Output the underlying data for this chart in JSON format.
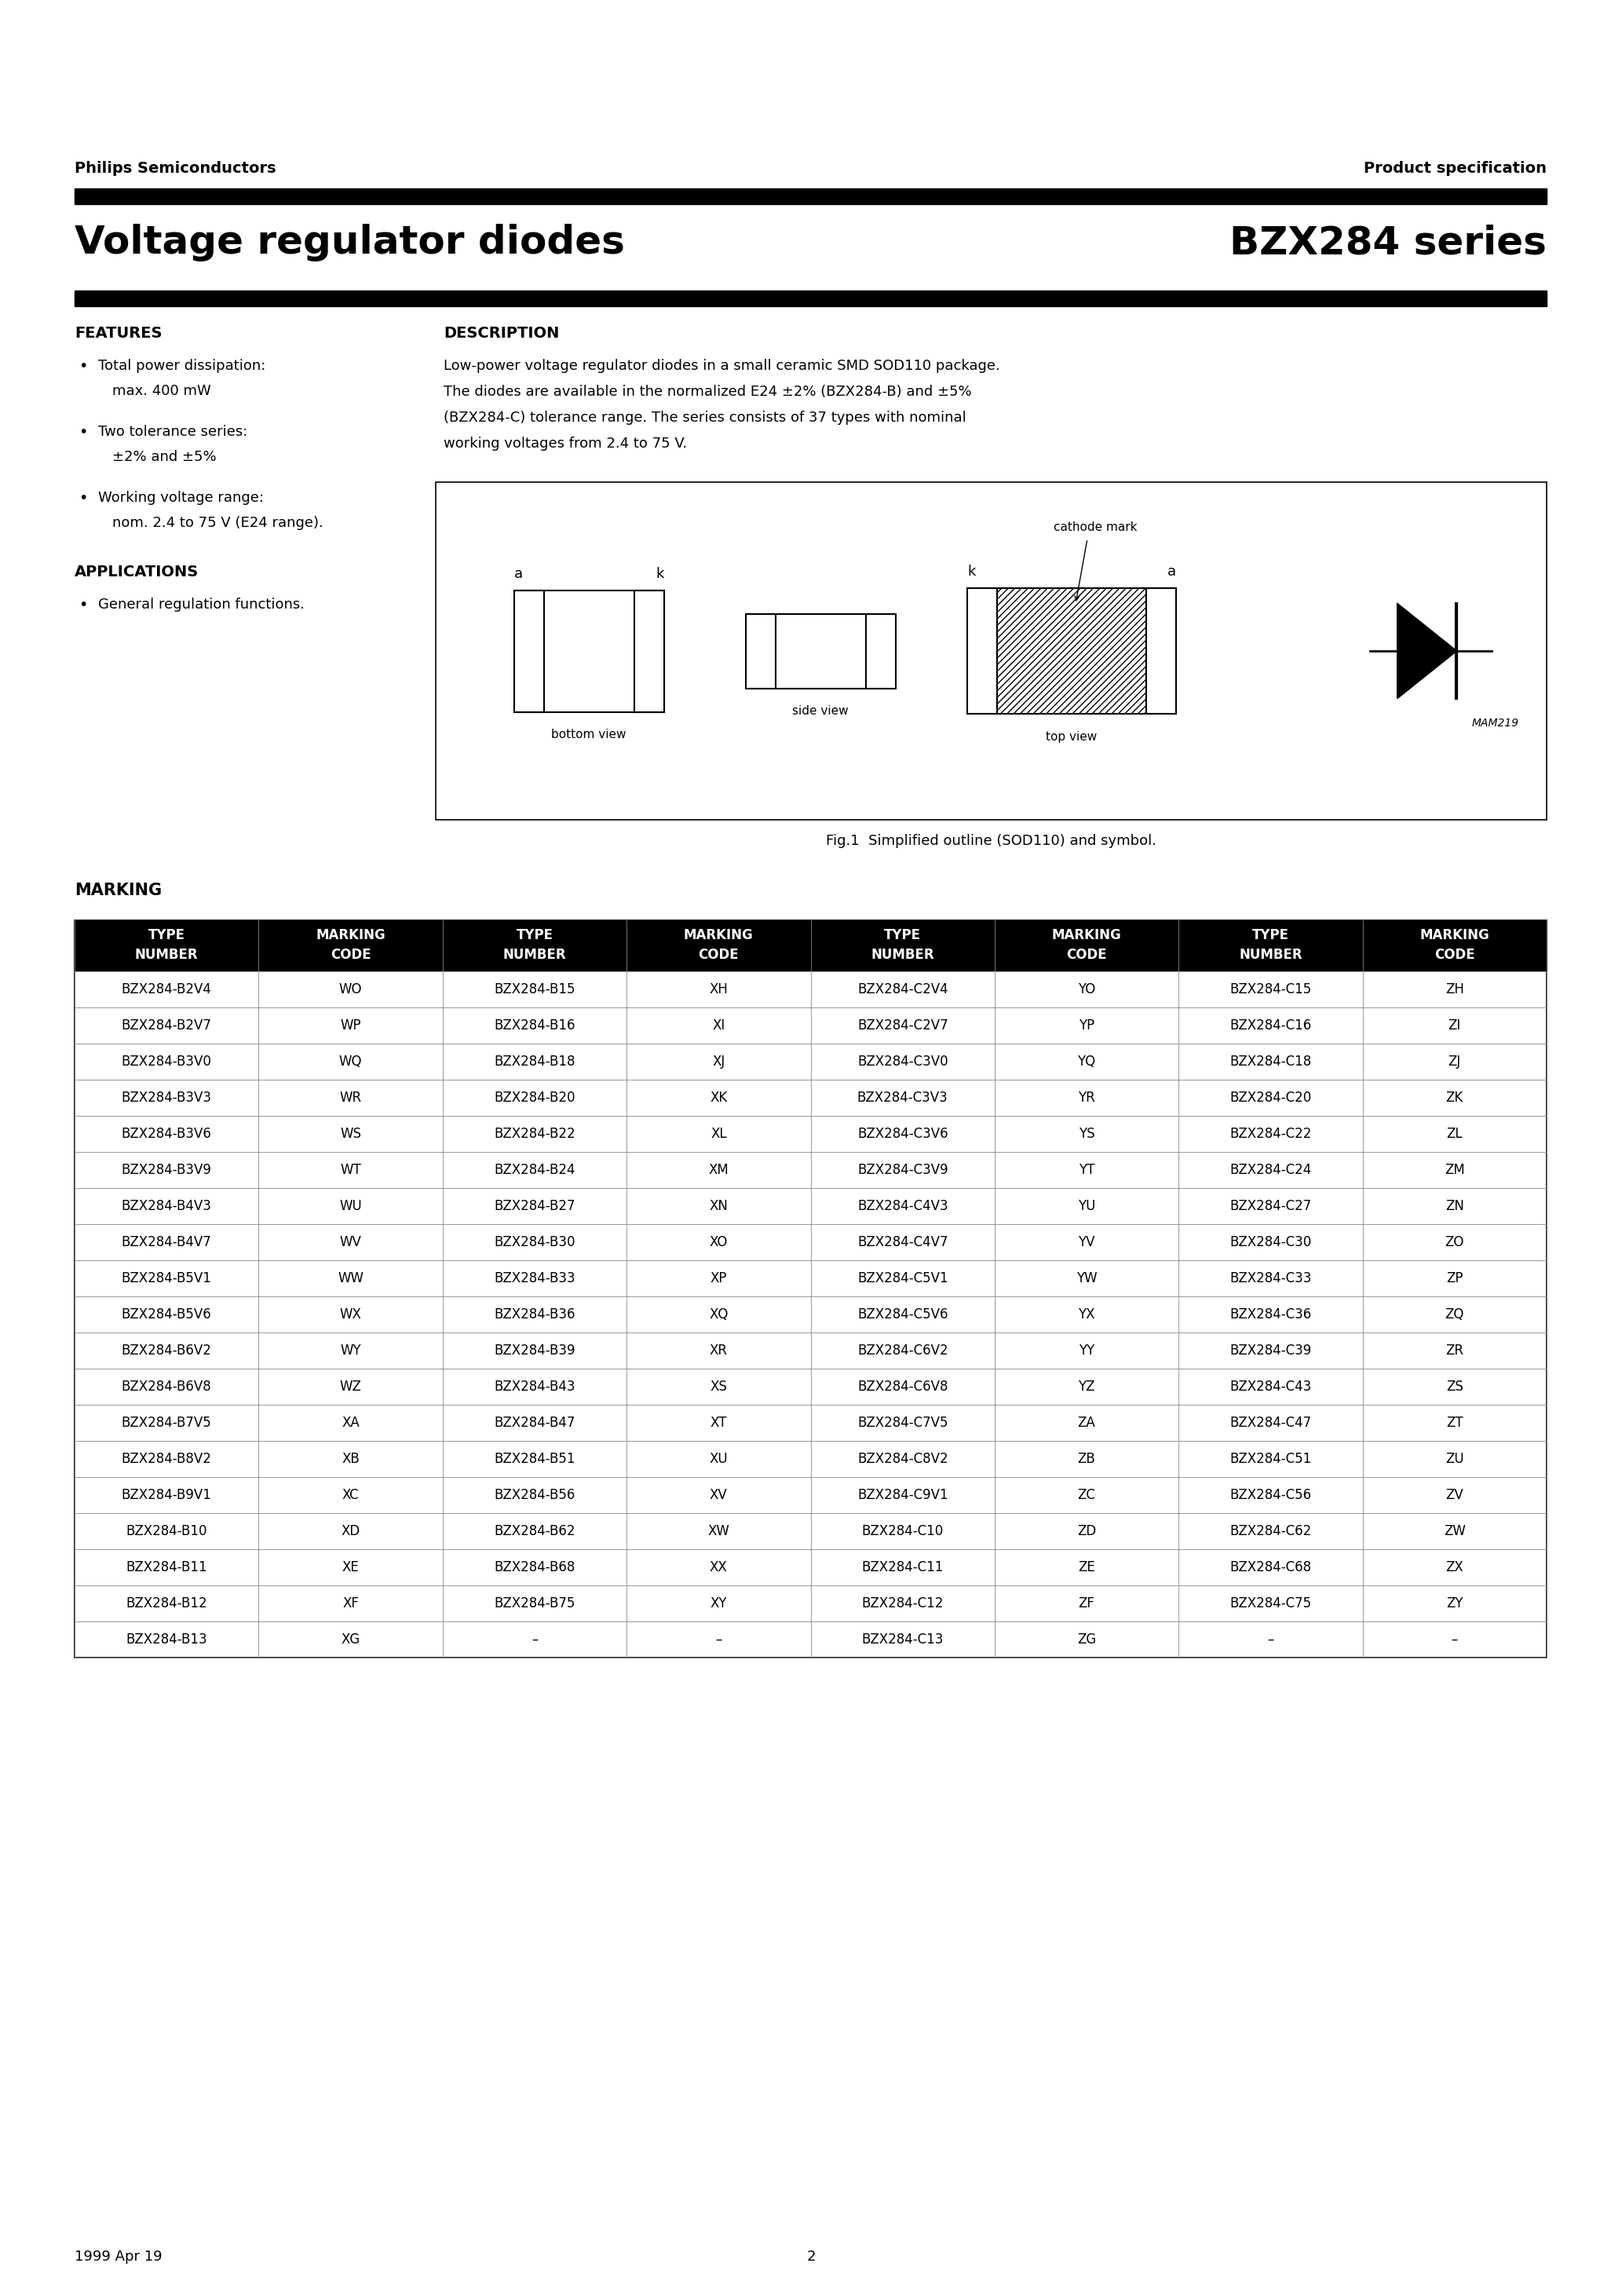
{
  "page_title_left": "Voltage regulator diodes",
  "page_title_right": "BZX284 series",
  "header_left": "Philips Semiconductors",
  "header_right": "Product specification",
  "features_title": "FEATURES",
  "features_lines": [
    [
      "Total power dissipation:",
      "max. 400 mW"
    ],
    [
      "Two tolerance series:",
      "±2% and ±5%"
    ],
    [
      "Working voltage range:",
      "nom. 2.4 to 75 V (E24 range)."
    ]
  ],
  "applications_title": "APPLICATIONS",
  "applications": [
    "General regulation functions."
  ],
  "description_title": "DESCRIPTION",
  "description_lines": [
    "Low-power voltage regulator diodes in a small ceramic SMD SOD110 package.",
    "The diodes are available in the normalized E24 ±2% (BZX284-B) and ±5%",
    "(BZX284-C) tolerance range. The series consists of 37 types with nominal",
    "working voltages from 2.4 to 75 V."
  ],
  "fig_caption": "Fig.1  Simplified outline (SOD110) and symbol.",
  "marking_title": "MARKING",
  "table_col_headers": [
    "TYPE\nNUMBER",
    "MARKING\nCODE",
    "TYPE\nNUMBER",
    "MARKING\nCODE",
    "TYPE\nNUMBER",
    "MARKING\nCODE",
    "TYPE\nNUMBER",
    "MARKING\nCODE"
  ],
  "table_data": [
    [
      "BZX284-B2V4",
      "WO",
      "BZX284-B15",
      "XH",
      "BZX284-C2V4",
      "YO",
      "BZX284-C15",
      "ZH"
    ],
    [
      "BZX284-B2V7",
      "WP",
      "BZX284-B16",
      "XI",
      "BZX284-C2V7",
      "YP",
      "BZX284-C16",
      "ZI"
    ],
    [
      "BZX284-B3V0",
      "WQ",
      "BZX284-B18",
      "XJ",
      "BZX284-C3V0",
      "YQ",
      "BZX284-C18",
      "ZJ"
    ],
    [
      "BZX284-B3V3",
      "WR",
      "BZX284-B20",
      "XK",
      "BZX284-C3V3",
      "YR",
      "BZX284-C20",
      "ZK"
    ],
    [
      "BZX284-B3V6",
      "WS",
      "BZX284-B22",
      "XL",
      "BZX284-C3V6",
      "YS",
      "BZX284-C22",
      "ZL"
    ],
    [
      "BZX284-B3V9",
      "WT",
      "BZX284-B24",
      "XM",
      "BZX284-C3V9",
      "YT",
      "BZX284-C24",
      "ZM"
    ],
    [
      "BZX284-B4V3",
      "WU",
      "BZX284-B27",
      "XN",
      "BZX284-C4V3",
      "YU",
      "BZX284-C27",
      "ZN"
    ],
    [
      "BZX284-B4V7",
      "WV",
      "BZX284-B30",
      "XO",
      "BZX284-C4V7",
      "YV",
      "BZX284-C30",
      "ZO"
    ],
    [
      "BZX284-B5V1",
      "WW",
      "BZX284-B33",
      "XP",
      "BZX284-C5V1",
      "YW",
      "BZX284-C33",
      "ZP"
    ],
    [
      "BZX284-B5V6",
      "WX",
      "BZX284-B36",
      "XQ",
      "BZX284-C5V6",
      "YX",
      "BZX284-C36",
      "ZQ"
    ],
    [
      "BZX284-B6V2",
      "WY",
      "BZX284-B39",
      "XR",
      "BZX284-C6V2",
      "YY",
      "BZX284-C39",
      "ZR"
    ],
    [
      "BZX284-B6V8",
      "WZ",
      "BZX284-B43",
      "XS",
      "BZX284-C6V8",
      "YZ",
      "BZX284-C43",
      "ZS"
    ],
    [
      "BZX284-B7V5",
      "XA",
      "BZX284-B47",
      "XT",
      "BZX284-C7V5",
      "ZA",
      "BZX284-C47",
      "ZT"
    ],
    [
      "BZX284-B8V2",
      "XB",
      "BZX284-B51",
      "XU",
      "BZX284-C8V2",
      "ZB",
      "BZX284-C51",
      "ZU"
    ],
    [
      "BZX284-B9V1",
      "XC",
      "BZX284-B56",
      "XV",
      "BZX284-C9V1",
      "ZC",
      "BZX284-C56",
      "ZV"
    ],
    [
      "BZX284-B10",
      "XD",
      "BZX284-B62",
      "XW",
      "BZX284-C10",
      "ZD",
      "BZX284-C62",
      "ZW"
    ],
    [
      "BZX284-B11",
      "XE",
      "BZX284-B68",
      "XX",
      "BZX284-C11",
      "ZE",
      "BZX284-C68",
      "ZX"
    ],
    [
      "BZX284-B12",
      "XF",
      "BZX284-B75",
      "XY",
      "BZX284-C12",
      "ZF",
      "BZX284-C75",
      "ZY"
    ],
    [
      "BZX284-B13",
      "XG",
      "–",
      "–",
      "BZX284-C13",
      "ZG",
      "–",
      "–"
    ]
  ],
  "footer_left": "1999 Apr 19",
  "footer_page": "2",
  "bg_color": "#ffffff",
  "text_color": "#000000",
  "black_bar_color": "#000000"
}
